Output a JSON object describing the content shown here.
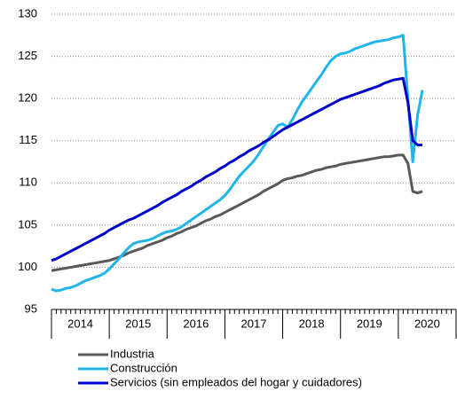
{
  "chart_data": {
    "type": "line",
    "x": [
      2014,
      2014.083,
      2014.167,
      2014.25,
      2014.333,
      2014.417,
      2014.5,
      2014.583,
      2014.667,
      2014.75,
      2014.833,
      2014.917,
      2015,
      2015.083,
      2015.167,
      2015.25,
      2015.333,
      2015.417,
      2015.5,
      2015.583,
      2015.667,
      2015.75,
      2015.833,
      2015.917,
      2016,
      2016.083,
      2016.167,
      2016.25,
      2016.333,
      2016.417,
      2016.5,
      2016.583,
      2016.667,
      2016.75,
      2016.833,
      2016.917,
      2017,
      2017.083,
      2017.167,
      2017.25,
      2017.333,
      2017.417,
      2017.5,
      2017.583,
      2017.667,
      2017.75,
      2017.833,
      2017.917,
      2018,
      2018.083,
      2018.167,
      2018.25,
      2018.333,
      2018.417,
      2018.5,
      2018.583,
      2018.667,
      2018.75,
      2018.833,
      2018.917,
      2019,
      2019.083,
      2019.167,
      2019.25,
      2019.333,
      2019.417,
      2019.5,
      2019.583,
      2019.667,
      2019.75,
      2019.833,
      2019.917,
      2020,
      2020.083,
      2020.167,
      2020.25,
      2020.333,
      2020.417
    ],
    "series": [
      {
        "name": "Industria",
        "color": "#595959",
        "values": [
          99.6,
          99.7,
          99.8,
          99.9,
          100.0,
          100.1,
          100.2,
          100.3,
          100.4,
          100.5,
          100.6,
          100.7,
          100.8,
          101.0,
          101.2,
          101.4,
          101.7,
          101.9,
          102.1,
          102.3,
          102.6,
          102.8,
          103.0,
          103.2,
          103.5,
          103.7,
          104.0,
          104.2,
          104.5,
          104.7,
          104.9,
          105.2,
          105.5,
          105.7,
          106.0,
          106.2,
          106.5,
          106.8,
          107.1,
          107.4,
          107.7,
          108.0,
          108.3,
          108.6,
          109.0,
          109.3,
          109.6,
          109.9,
          110.3,
          110.5,
          110.6,
          110.8,
          110.9,
          111.1,
          111.3,
          111.5,
          111.6,
          111.8,
          111.9,
          112.0,
          112.2,
          112.3,
          112.4,
          112.5,
          112.6,
          112.7,
          112.8,
          112.9,
          113.0,
          113.1,
          113.1,
          113.2,
          113.3,
          113.3,
          112.3,
          109.0,
          108.8,
          109.0
        ]
      },
      {
        "name": "Construcción",
        "color": "#1fb5ea",
        "values": [
          97.4,
          97.2,
          97.3,
          97.5,
          97.6,
          97.8,
          98.1,
          98.4,
          98.6,
          98.8,
          99.0,
          99.3,
          99.8,
          100.4,
          101.0,
          101.7,
          102.3,
          102.8,
          103.0,
          103.1,
          103.2,
          103.4,
          103.7,
          104.0,
          104.2,
          104.3,
          104.5,
          104.8,
          105.2,
          105.6,
          106.0,
          106.4,
          106.8,
          107.2,
          107.6,
          108.0,
          108.5,
          109.2,
          110.0,
          110.8,
          111.4,
          112.0,
          112.6,
          113.4,
          114.3,
          115.2,
          116.0,
          116.8,
          117.0,
          116.6,
          117.5,
          118.6,
          119.6,
          120.4,
          121.2,
          122.0,
          122.8,
          123.7,
          124.5,
          125.0,
          125.3,
          125.4,
          125.6,
          125.9,
          126.1,
          126.3,
          126.5,
          126.7,
          126.8,
          126.9,
          127.0,
          127.2,
          127.3,
          127.5,
          120.0,
          112.5,
          118.0,
          121.0
        ]
      },
      {
        "name": "Servicios (sin empleados del hogar y cuidadores)",
        "color": "#0000cc",
        "values": [
          100.8,
          101.0,
          101.3,
          101.6,
          101.9,
          102.2,
          102.5,
          102.8,
          103.1,
          103.4,
          103.7,
          104.0,
          104.4,
          104.7,
          105.0,
          105.3,
          105.6,
          105.8,
          106.1,
          106.4,
          106.7,
          107.0,
          107.3,
          107.7,
          108.0,
          108.3,
          108.6,
          109.0,
          109.3,
          109.6,
          110.0,
          110.3,
          110.7,
          111.0,
          111.3,
          111.7,
          112.0,
          112.4,
          112.7,
          113.1,
          113.4,
          113.8,
          114.1,
          114.4,
          114.8,
          115.1,
          115.5,
          115.9,
          116.3,
          116.6,
          116.9,
          117.2,
          117.5,
          117.8,
          118.1,
          118.4,
          118.7,
          119.0,
          119.3,
          119.6,
          119.9,
          120.1,
          120.3,
          120.5,
          120.7,
          120.9,
          121.1,
          121.3,
          121.5,
          121.8,
          122.0,
          122.2,
          122.3,
          122.4,
          119.5,
          115.0,
          114.5,
          114.5
        ]
      }
    ],
    "xlim": [
      2014,
      2021
    ],
    "xticks": [
      {
        "value": 2014.5,
        "label": "2014"
      },
      {
        "value": 2015.5,
        "label": "2015"
      },
      {
        "value": 2016.5,
        "label": "2016"
      },
      {
        "value": 2017.5,
        "label": "2017"
      },
      {
        "value": 2018.5,
        "label": "2018"
      },
      {
        "value": 2019.5,
        "label": "2019"
      },
      {
        "value": 2020.5,
        "label": "2020"
      }
    ],
    "ylim": [
      95,
      130
    ],
    "yticks": [
      95,
      100,
      105,
      110,
      115,
      120,
      125,
      130
    ],
    "grid": true,
    "legend": "bottom"
  }
}
